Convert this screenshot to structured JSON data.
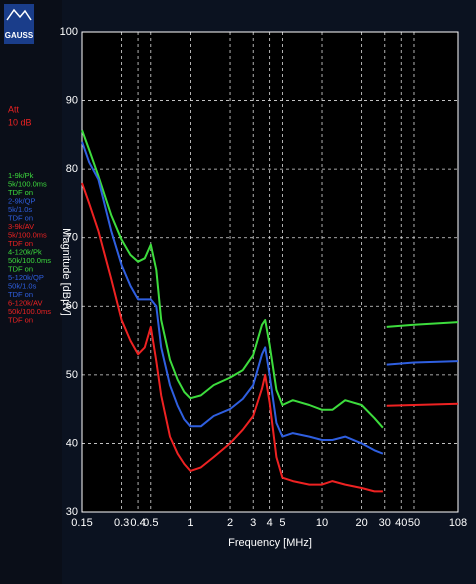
{
  "logo": "GAUSS",
  "attenuation": {
    "label": "Att",
    "value": "10 dB"
  },
  "chart_data": {
    "type": "line",
    "x_label": "Frequency [MHz]",
    "y_label": "Magnitude [dBµV]",
    "log_x": true,
    "grid": true,
    "xlim": [
      0.15,
      108
    ],
    "ylim": [
      30,
      100
    ],
    "xticks": [
      0.15,
      0.3,
      0.4,
      0.5,
      1,
      2,
      3,
      4,
      5,
      10,
      20,
      30,
      40,
      50,
      108
    ],
    "yticks": [
      30,
      40,
      50,
      60,
      70,
      80,
      90,
      100
    ],
    "x": [
      0.15,
      0.17,
      0.2,
      0.25,
      0.3,
      0.35,
      0.4,
      0.45,
      0.5,
      0.55,
      0.6,
      0.7,
      0.8,
      0.9,
      1,
      1.2,
      1.5,
      2,
      2.5,
      3,
      3.5,
      3.7,
      4,
      4.5,
      5,
      6,
      8,
      10,
      12,
      15,
      20,
      25,
      29,
      30,
      31,
      50,
      108
    ],
    "series": [
      {
        "color": "#3ddc3d",
        "values": [
          85.7,
          82.8,
          79,
          73.3,
          69.7,
          67.5,
          66.5,
          67,
          69,
          65.3,
          58,
          52.2,
          49.3,
          47.5,
          46.6,
          47,
          48.5,
          49.6,
          50.7,
          52.9,
          57.3,
          58,
          54.4,
          47.8,
          45.6,
          46.3,
          45.6,
          44.9,
          44.9,
          46.3,
          45.6,
          43.7,
          42.3,
          null,
          57,
          57.3,
          57.7
        ]
      },
      {
        "color": "#2f5fe0",
        "values": [
          84,
          81,
          78.5,
          71,
          66,
          63,
          61,
          61,
          61,
          60,
          54,
          48.5,
          45.5,
          43.5,
          42.5,
          42.5,
          44,
          45,
          46.5,
          48.5,
          53,
          54,
          50,
          43,
          41,
          41.5,
          41,
          40.5,
          40.5,
          41,
          40,
          39,
          38.5,
          null,
          51.5,
          51.8,
          52
        ]
      },
      {
        "color": "#ee2222",
        "values": [
          78,
          75,
          71,
          64,
          58,
          55,
          53,
          54,
          57,
          52,
          47,
          41,
          38.5,
          37,
          36,
          36.5,
          38,
          40,
          42,
          44,
          48,
          50,
          46,
          38,
          35,
          34.5,
          34,
          34,
          34.5,
          34,
          33.5,
          33,
          33,
          null,
          45.5,
          45.6,
          45.8
        ]
      }
    ],
    "legend_entries": [
      {
        "color": "#3ddc3d",
        "lines": [
          "1-9k/Pk",
          "5k/100.0ms",
          "TDF on"
        ]
      },
      {
        "color": "#2f5fe0",
        "lines": [
          "2-9k/QP",
          "5k/1.0s",
          "TDF on"
        ]
      },
      {
        "color": "#ee2222",
        "lines": [
          "3-9k/AV",
          "5k/100.0ms",
          "TDF on"
        ]
      },
      {
        "color": "#3ddc3d",
        "lines": [
          "4-120k/Pk",
          "50k/100.0ms",
          "TDF on"
        ]
      },
      {
        "color": "#2f5fe0",
        "lines": [
          "5-120k/QP",
          "50k/1.0s",
          "TDF on"
        ]
      },
      {
        "color": "#ee2222",
        "lines": [
          "6-120k/AV",
          "50k/100.0ms",
          "TDF on"
        ]
      }
    ]
  }
}
